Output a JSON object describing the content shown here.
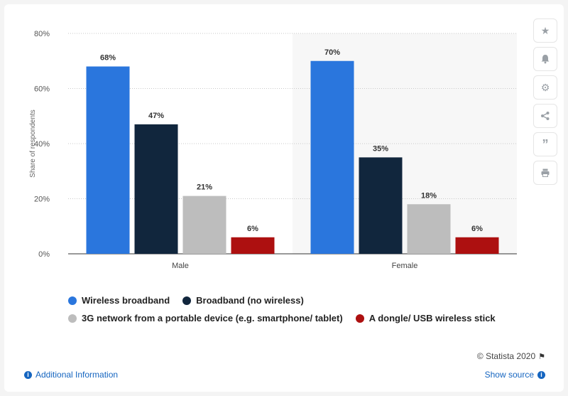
{
  "chart_data": {
    "type": "bar",
    "categories": [
      "Male",
      "Female"
    ],
    "series": [
      {
        "name": "Wireless broadband",
        "values": [
          68,
          70
        ]
      },
      {
        "name": "Broadband (no wireless)",
        "values": [
          47,
          35
        ]
      },
      {
        "name": "3G network from a portable device (e.g. smartphone/ tablet)",
        "values": [
          21,
          18
        ]
      },
      {
        "name": "A dongle/ USB wireless stick",
        "values": [
          6,
          6
        ]
      }
    ],
    "colors": [
      "#2a76dd",
      "#11263d",
      "#bdbdbd",
      "#ad1010"
    ],
    "ylabel": "Share of respondents",
    "ylim": [
      0,
      80
    ],
    "yticks": [
      0,
      20,
      40,
      60,
      80
    ],
    "ytick_labels": [
      "0%",
      "20%",
      "40%",
      "60%",
      "80%"
    ],
    "value_suffix": "%",
    "grid": true,
    "highlighted_category": "Female",
    "legend_position": "bottom"
  },
  "legend": {
    "items": [
      {
        "label": "Wireless broadband",
        "color": "#2a76dd"
      },
      {
        "label": "Broadband (no wireless)",
        "color": "#11263d"
      },
      {
        "label": "3G network from a portable device (e.g. smartphone/ tablet)",
        "color": "#bdbdbd"
      },
      {
        "label": "A dongle/ USB wireless stick",
        "color": "#ad1010"
      }
    ]
  },
  "sidebar": {
    "icons": [
      "star-icon",
      "bell-icon",
      "gear-icon",
      "share-icon",
      "quote-icon",
      "print-icon"
    ]
  },
  "footer": {
    "copyright": "© Statista 2020",
    "additional_info": "Additional Information",
    "show_source": "Show source"
  }
}
